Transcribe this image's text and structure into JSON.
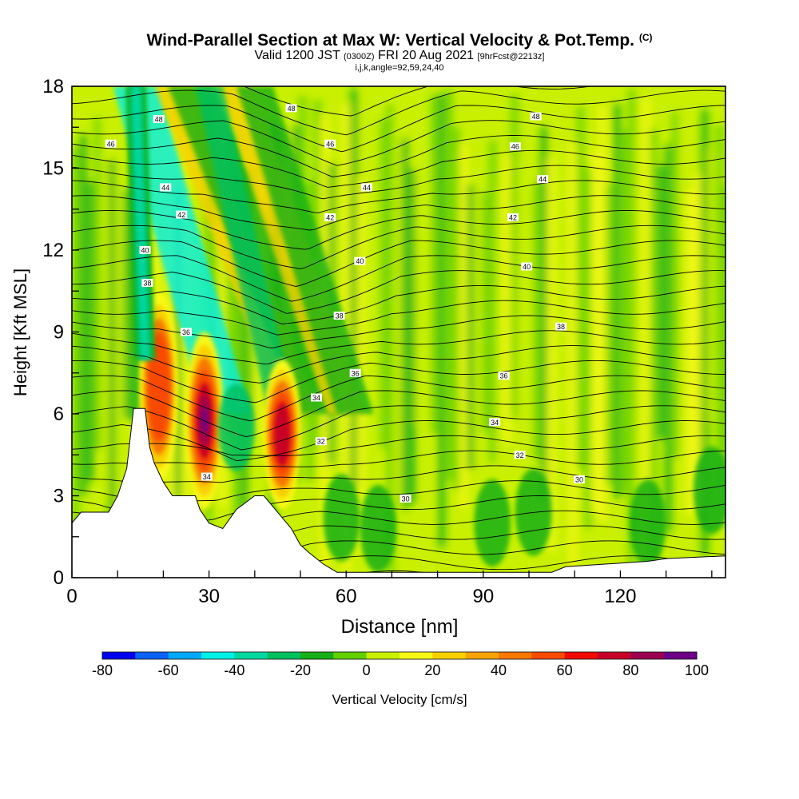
{
  "header": {
    "title": "Wind-Parallel Section at Max W: Vertical Velocity & Pot.Temp.",
    "copyright": "(C)",
    "valid_prefix": "Valid 1200 JST",
    "valid_zulu": "(0300Z)",
    "valid_date": "FRI 20 Aug 2021",
    "forecast": "[9hrFcst@2213z]",
    "ijk": "i,j,k,angle=92,59,24,40"
  },
  "chart_data": {
    "type": "heatmap",
    "xlabel": "Distance [nm]",
    "ylabel": "Height [Kft MSL]",
    "xlim": [
      0,
      143
    ],
    "ylim": [
      0,
      18
    ],
    "x_ticks": [
      "0",
      "30",
      "60",
      "90",
      "120"
    ],
    "x_tick_values": [
      0,
      30,
      60,
      90,
      120
    ],
    "y_ticks": [
      "0",
      "3",
      "6",
      "9",
      "12",
      "15",
      "18"
    ],
    "y_tick_values": [
      0,
      3,
      6,
      9,
      12,
      15,
      18
    ],
    "colorbar": {
      "label": "Vertical Velocity [cm/s]",
      "range": [
        -80,
        100
      ],
      "step": 10,
      "tick_labels": [
        "-80",
        "-60",
        "-40",
        "-20",
        "0",
        "20",
        "40",
        "60",
        "80",
        "100"
      ],
      "tick_values": [
        -80,
        -60,
        -40,
        -20,
        0,
        20,
        40,
        60,
        80,
        100
      ],
      "colors": [
        "#0000f0",
        "#0c62f8",
        "#00a8f8",
        "#00f0e8",
        "#00d8a0",
        "#00c060",
        "#18b018",
        "#64d000",
        "#c8f000",
        "#f8f818",
        "#f8d000",
        "#f8a400",
        "#f87800",
        "#f84a00",
        "#f00a00",
        "#c80028",
        "#9c0050",
        "#6e0088"
      ]
    },
    "terrain_kft": [
      [
        0,
        2.0
      ],
      [
        2,
        2.4
      ],
      [
        8,
        2.4
      ],
      [
        10,
        3.0
      ],
      [
        12,
        4.0
      ],
      [
        13.5,
        6.2
      ],
      [
        16,
        6.2
      ],
      [
        17,
        4.8
      ],
      [
        18,
        4.2
      ],
      [
        20,
        3.5
      ],
      [
        22,
        3.0
      ],
      [
        27,
        3.0
      ],
      [
        28,
        2.5
      ],
      [
        30,
        2.0
      ],
      [
        33,
        1.8
      ],
      [
        36,
        2.5
      ],
      [
        40,
        3.0
      ],
      [
        42,
        3.0
      ],
      [
        44,
        2.6
      ],
      [
        46,
        2.2
      ],
      [
        48,
        1.8
      ],
      [
        50,
        1.2
      ],
      [
        52,
        0.9
      ],
      [
        55,
        0.5
      ],
      [
        58,
        0.2
      ],
      [
        70,
        0.2
      ],
      [
        105,
        0.2
      ],
      [
        108,
        0.4
      ],
      [
        126,
        0.6
      ],
      [
        130,
        0.7
      ],
      [
        143,
        0.8
      ]
    ],
    "updraft_cores": [
      {
        "x": 19,
        "y_bottom": 3.5,
        "y_top": 10.5,
        "peak": 65
      },
      {
        "x": 29,
        "y_bottom": 2.5,
        "y_top": 9.0,
        "peak": 95
      },
      {
        "x": 46,
        "y_bottom": 2.5,
        "y_top": 8.0,
        "peak": 70
      }
    ],
    "downdraft_streak": {
      "x_bottom": 16,
      "x_top": 14,
      "y_bottom": 8,
      "y_top": 18,
      "min": -45
    },
    "isentrope_labels": [
      {
        "label": "48",
        "x": 19,
        "y": 16.8
      },
      {
        "label": "46",
        "x": 8.5,
        "y": 15.9
      },
      {
        "label": "44",
        "x": 20.5,
        "y": 14.3
      },
      {
        "label": "42",
        "x": 24,
        "y": 13.3
      },
      {
        "label": "40",
        "x": 16,
        "y": 12.0
      },
      {
        "label": "38",
        "x": 16.5,
        "y": 10.8
      },
      {
        "label": "36",
        "x": 25,
        "y": 9.0
      },
      {
        "label": "34",
        "x": 29.5,
        "y": 3.7
      },
      {
        "label": "48",
        "x": 48,
        "y": 17.2
      },
      {
        "label": "46",
        "x": 56.5,
        "y": 15.9
      },
      {
        "label": "44",
        "x": 64.5,
        "y": 14.3
      },
      {
        "label": "42",
        "x": 56.5,
        "y": 13.2
      },
      {
        "label": "40",
        "x": 63,
        "y": 11.6
      },
      {
        "label": "38",
        "x": 58.5,
        "y": 9.6
      },
      {
        "label": "36",
        "x": 62,
        "y": 7.5
      },
      {
        "label": "34",
        "x": 53.5,
        "y": 6.6
      },
      {
        "label": "32",
        "x": 54.5,
        "y": 5.0
      },
      {
        "label": "30",
        "x": 73,
        "y": 2.9
      },
      {
        "label": "48",
        "x": 101.5,
        "y": 16.9
      },
      {
        "label": "46",
        "x": 97,
        "y": 15.8
      },
      {
        "label": "44",
        "x": 103,
        "y": 14.6
      },
      {
        "label": "42",
        "x": 96.5,
        "y": 13.2
      },
      {
        "label": "40",
        "x": 99.5,
        "y": 11.4
      },
      {
        "label": "38",
        "x": 107,
        "y": 9.2
      },
      {
        "label": "36",
        "x": 94.5,
        "y": 7.4
      },
      {
        "label": "34",
        "x": 92.5,
        "y": 5.7
      },
      {
        "label": "32",
        "x": 98,
        "y": 4.5
      },
      {
        "label": "30",
        "x": 111,
        "y": 3.6
      }
    ]
  }
}
